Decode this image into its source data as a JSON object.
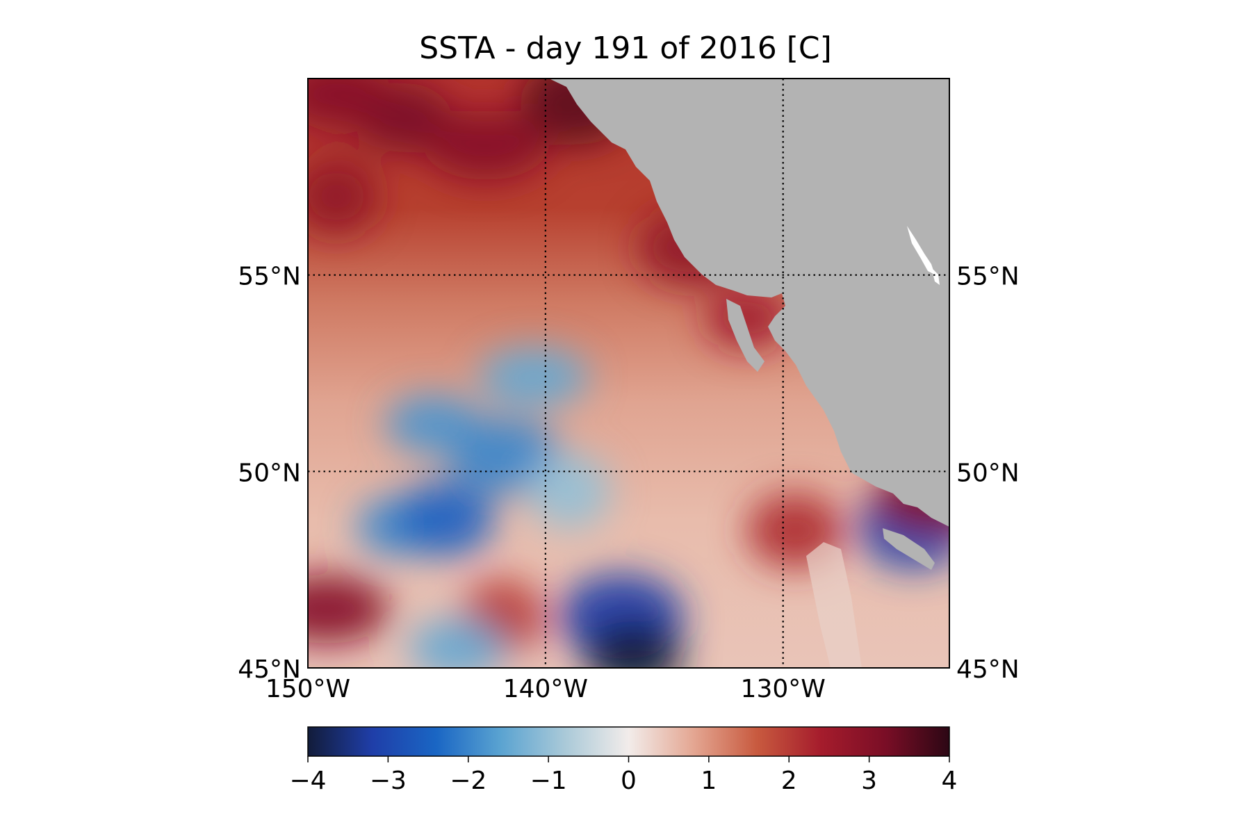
{
  "title": "SSTA - day 191 of 2016 [C]",
  "map": {
    "region": {
      "lon": [
        -150,
        -123
      ],
      "lat": [
        45,
        60
      ]
    },
    "land_color": "#b3b3b3",
    "gridlines": {
      "style": "dotted",
      "color": "#000000"
    },
    "lat_labels": [
      {
        "id": "55",
        "text": "55°N",
        "lat": 55
      },
      {
        "id": "50",
        "text": "50°N",
        "lat": 50
      },
      {
        "id": "45",
        "text": "45°N",
        "lat": 45
      }
    ],
    "lon_labels": [
      {
        "id": "150",
        "text": "150°W",
        "lon": -150
      },
      {
        "id": "140",
        "text": "140°W",
        "lon": -140
      },
      {
        "id": "130",
        "text": "130°W",
        "lon": -130
      }
    ],
    "anomaly_features": [
      {
        "kind": "warm",
        "value": 3.2,
        "lon": -146,
        "lat": 59
      },
      {
        "kind": "warm",
        "value": 3.5,
        "lon": -138.7,
        "lat": 59.4
      },
      {
        "kind": "warm",
        "value": 3.0,
        "lon": -142.5,
        "lat": 58.3
      },
      {
        "kind": "warm",
        "value": 2.8,
        "lon": -148.8,
        "lat": 57
      },
      {
        "kind": "warm",
        "value": 3.0,
        "lon": -148.8,
        "lat": 59.6
      },
      {
        "kind": "warm",
        "value": 2.8,
        "lon": -133.8,
        "lat": 55.7
      },
      {
        "kind": "warm",
        "value": 2.5,
        "lon": -131.5,
        "lat": 53.9
      },
      {
        "kind": "warm",
        "value": 2.2,
        "lon": -129.5,
        "lat": 48.5
      },
      {
        "kind": "warm",
        "value": 3.0,
        "lon": -149.2,
        "lat": 46.5
      },
      {
        "kind": "warm",
        "value": 2.0,
        "lon": -141.8,
        "lat": 46.3
      },
      {
        "kind": "cool",
        "value": -1.8,
        "lon": -144.7,
        "lat": 51.2
      },
      {
        "kind": "cool",
        "value": -2.0,
        "lon": -141.7,
        "lat": 50.4
      },
      {
        "kind": "cool",
        "value": -2.0,
        "lon": -146.2,
        "lat": 48.6
      },
      {
        "kind": "cool",
        "value": -2.5,
        "lon": -144.2,
        "lat": 48.8
      },
      {
        "kind": "cool",
        "value": -1.5,
        "lon": -140.5,
        "lat": 52.4
      },
      {
        "kind": "cool",
        "value": -1.0,
        "lon": -139,
        "lat": 49.5
      },
      {
        "kind": "cool",
        "value": -1.5,
        "lon": -143.7,
        "lat": 45.5
      },
      {
        "kind": "cool",
        "value": -3.2,
        "lon": -136.8,
        "lat": 46.3
      },
      {
        "kind": "cool",
        "value": -4.0,
        "lon": -136.3,
        "lat": 45.3
      },
      {
        "kind": "cool",
        "value": -3.0,
        "lon": -124.5,
        "lat": 48.6
      },
      {
        "kind": "warm",
        "value": 3.0,
        "lon": -123.6,
        "lat": 49.3
      }
    ]
  },
  "colorbar": {
    "min": -4,
    "max": 4,
    "ticks": [
      "−4",
      "−3",
      "−2",
      "−1",
      "0",
      "1",
      "2",
      "3",
      "4"
    ],
    "colors": [
      "#121c3a",
      "#1f3ea8",
      "#1a66c4",
      "#5aa3d1",
      "#a9c9d8",
      "#f2ecea",
      "#e4a793",
      "#c85a3f",
      "#a51c2c",
      "#7a0e26",
      "#2c0714"
    ]
  }
}
